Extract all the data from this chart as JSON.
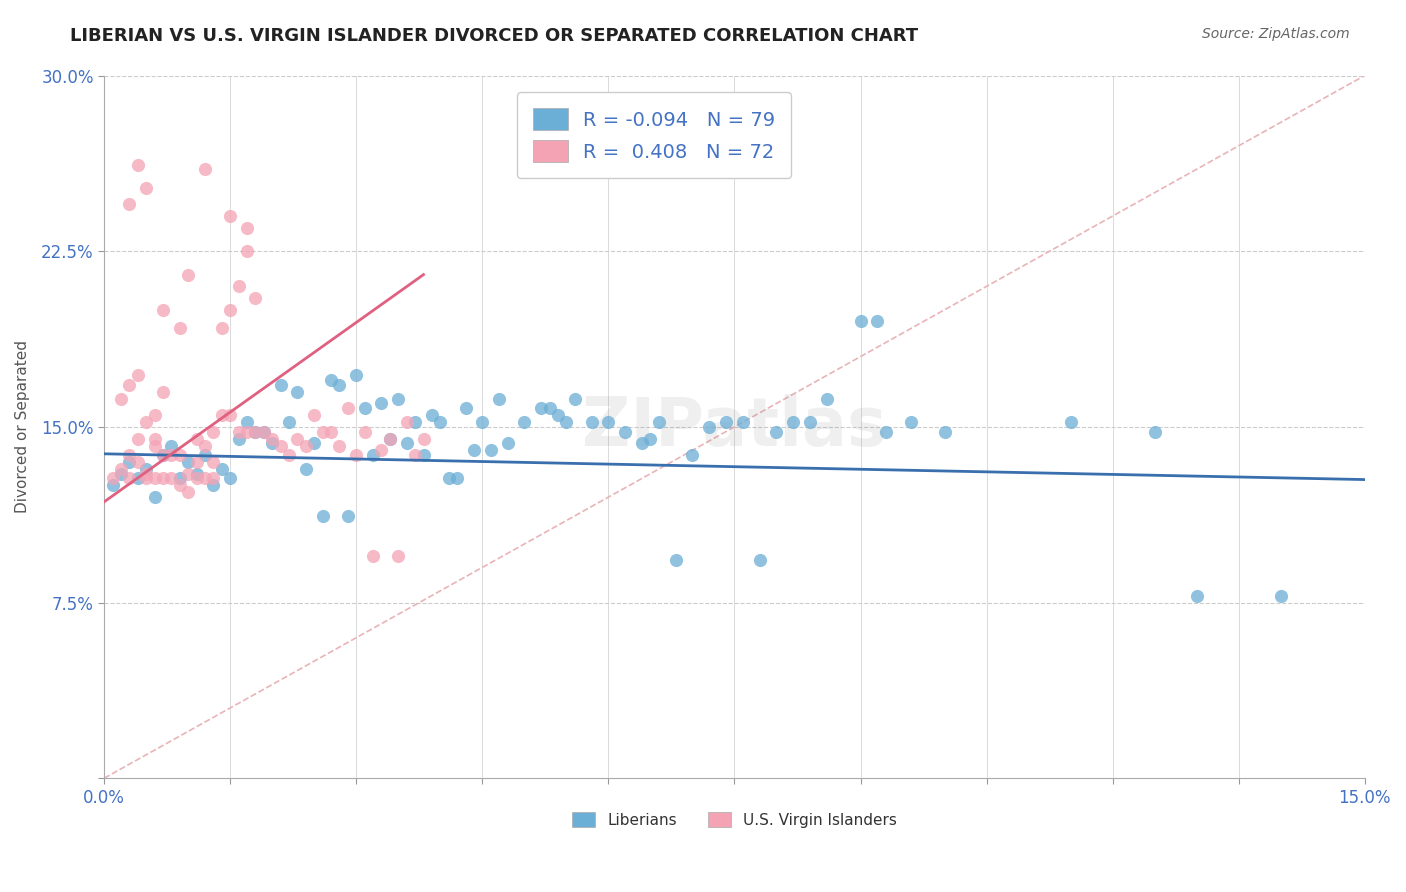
{
  "title": "LIBERIAN VS U.S. VIRGIN ISLANDER DIVORCED OR SEPARATED CORRELATION CHART",
  "source": "Source: ZipAtlas.com",
  "ylabel": "Divorced or Separated",
  "xlim": [
    0.0,
    0.15
  ],
  "ylim": [
    0.0,
    0.3
  ],
  "blue_color": "#6baed6",
  "pink_color": "#f4a3b5",
  "blue_R": -0.094,
  "blue_N": 79,
  "pink_R": 0.408,
  "pink_N": 72,
  "grid_color": "#cccccc",
  "ref_line_color": "#e8b4b8",
  "blue_scatter": [
    [
      0.001,
      0.125
    ],
    [
      0.002,
      0.13
    ],
    [
      0.003,
      0.135
    ],
    [
      0.004,
      0.128
    ],
    [
      0.005,
      0.132
    ],
    [
      0.006,
      0.12
    ],
    [
      0.007,
      0.138
    ],
    [
      0.008,
      0.142
    ],
    [
      0.009,
      0.128
    ],
    [
      0.01,
      0.135
    ],
    [
      0.011,
      0.13
    ],
    [
      0.012,
      0.138
    ],
    [
      0.013,
      0.125
    ],
    [
      0.014,
      0.132
    ],
    [
      0.015,
      0.128
    ],
    [
      0.016,
      0.145
    ],
    [
      0.017,
      0.152
    ],
    [
      0.018,
      0.148
    ],
    [
      0.019,
      0.148
    ],
    [
      0.02,
      0.143
    ],
    [
      0.021,
      0.168
    ],
    [
      0.022,
      0.152
    ],
    [
      0.023,
      0.165
    ],
    [
      0.024,
      0.132
    ],
    [
      0.025,
      0.143
    ],
    [
      0.026,
      0.112
    ],
    [
      0.027,
      0.17
    ],
    [
      0.028,
      0.168
    ],
    [
      0.029,
      0.112
    ],
    [
      0.03,
      0.172
    ],
    [
      0.031,
      0.158
    ],
    [
      0.032,
      0.138
    ],
    [
      0.033,
      0.16
    ],
    [
      0.034,
      0.145
    ],
    [
      0.035,
      0.162
    ],
    [
      0.036,
      0.143
    ],
    [
      0.037,
      0.152
    ],
    [
      0.038,
      0.138
    ],
    [
      0.039,
      0.155
    ],
    [
      0.04,
      0.152
    ],
    [
      0.041,
      0.128
    ],
    [
      0.042,
      0.128
    ],
    [
      0.043,
      0.158
    ],
    [
      0.044,
      0.14
    ],
    [
      0.045,
      0.152
    ],
    [
      0.046,
      0.14
    ],
    [
      0.047,
      0.162
    ],
    [
      0.048,
      0.143
    ],
    [
      0.05,
      0.152
    ],
    [
      0.052,
      0.158
    ],
    [
      0.053,
      0.158
    ],
    [
      0.054,
      0.155
    ],
    [
      0.055,
      0.152
    ],
    [
      0.056,
      0.162
    ],
    [
      0.058,
      0.152
    ],
    [
      0.06,
      0.152
    ],
    [
      0.062,
      0.148
    ],
    [
      0.064,
      0.143
    ],
    [
      0.065,
      0.145
    ],
    [
      0.066,
      0.152
    ],
    [
      0.068,
      0.093
    ],
    [
      0.07,
      0.138
    ],
    [
      0.072,
      0.15
    ],
    [
      0.074,
      0.152
    ],
    [
      0.076,
      0.152
    ],
    [
      0.078,
      0.093
    ],
    [
      0.08,
      0.148
    ],
    [
      0.082,
      0.152
    ],
    [
      0.084,
      0.152
    ],
    [
      0.086,
      0.162
    ],
    [
      0.09,
      0.195
    ],
    [
      0.092,
      0.195
    ],
    [
      0.093,
      0.148
    ],
    [
      0.096,
      0.152
    ],
    [
      0.1,
      0.148
    ],
    [
      0.115,
      0.152
    ],
    [
      0.125,
      0.148
    ],
    [
      0.13,
      0.078
    ],
    [
      0.14,
      0.078
    ]
  ],
  "pink_scatter": [
    [
      0.001,
      0.128
    ],
    [
      0.002,
      0.132
    ],
    [
      0.002,
      0.162
    ],
    [
      0.003,
      0.138
    ],
    [
      0.003,
      0.168
    ],
    [
      0.003,
      0.128
    ],
    [
      0.004,
      0.145
    ],
    [
      0.004,
      0.135
    ],
    [
      0.004,
      0.172
    ],
    [
      0.005,
      0.13
    ],
    [
      0.005,
      0.128
    ],
    [
      0.005,
      0.152
    ],
    [
      0.006,
      0.128
    ],
    [
      0.006,
      0.155
    ],
    [
      0.006,
      0.145
    ],
    [
      0.006,
      0.142
    ],
    [
      0.007,
      0.128
    ],
    [
      0.007,
      0.138
    ],
    [
      0.007,
      0.165
    ],
    [
      0.008,
      0.138
    ],
    [
      0.008,
      0.128
    ],
    [
      0.009,
      0.125
    ],
    [
      0.009,
      0.138
    ],
    [
      0.01,
      0.122
    ],
    [
      0.01,
      0.13
    ],
    [
      0.011,
      0.128
    ],
    [
      0.011,
      0.135
    ],
    [
      0.011,
      0.145
    ],
    [
      0.012,
      0.142
    ],
    [
      0.012,
      0.128
    ],
    [
      0.013,
      0.128
    ],
    [
      0.013,
      0.135
    ],
    [
      0.013,
      0.148
    ],
    [
      0.014,
      0.155
    ],
    [
      0.014,
      0.192
    ],
    [
      0.015,
      0.155
    ],
    [
      0.015,
      0.2
    ],
    [
      0.016,
      0.148
    ],
    [
      0.016,
      0.21
    ],
    [
      0.017,
      0.148
    ],
    [
      0.017,
      0.225
    ],
    [
      0.018,
      0.148
    ],
    [
      0.018,
      0.205
    ],
    [
      0.019,
      0.148
    ],
    [
      0.02,
      0.145
    ],
    [
      0.021,
      0.142
    ],
    [
      0.022,
      0.138
    ],
    [
      0.023,
      0.145
    ],
    [
      0.024,
      0.142
    ],
    [
      0.025,
      0.155
    ],
    [
      0.026,
      0.148
    ],
    [
      0.027,
      0.148
    ],
    [
      0.028,
      0.142
    ],
    [
      0.029,
      0.158
    ],
    [
      0.03,
      0.138
    ],
    [
      0.031,
      0.148
    ],
    [
      0.032,
      0.095
    ],
    [
      0.033,
      0.14
    ],
    [
      0.034,
      0.145
    ],
    [
      0.035,
      0.095
    ],
    [
      0.036,
      0.152
    ],
    [
      0.037,
      0.138
    ],
    [
      0.038,
      0.145
    ],
    [
      0.003,
      0.245
    ],
    [
      0.004,
      0.262
    ],
    [
      0.005,
      0.252
    ],
    [
      0.007,
      0.2
    ],
    [
      0.009,
      0.192
    ],
    [
      0.01,
      0.215
    ],
    [
      0.012,
      0.26
    ],
    [
      0.015,
      0.24
    ],
    [
      0.017,
      0.235
    ]
  ],
  "blue_line": [
    [
      0.0,
      0.1385
    ],
    [
      0.15,
      0.1275
    ]
  ],
  "pink_line": [
    [
      0.0,
      0.118
    ],
    [
      0.038,
      0.215
    ]
  ],
  "ref_line": [
    [
      0.0,
      0.0
    ],
    [
      0.15,
      0.3
    ]
  ]
}
